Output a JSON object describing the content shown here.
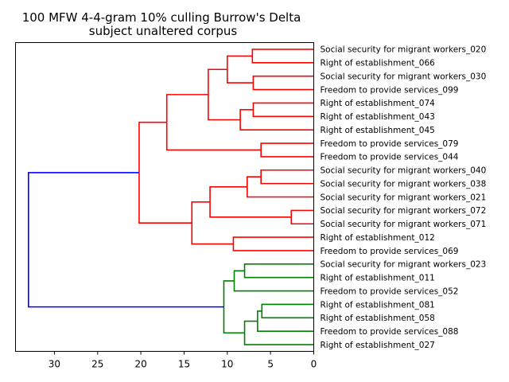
{
  "chart_data": {
    "type": "dendrogram",
    "title_lines": [
      "100 MFW 4-4-gram 10% culling Burrow's Delta",
      "subject unaltered corpus"
    ],
    "orientation": "left",
    "xlim": [
      34.5,
      0
    ],
    "x_ticks": [
      30,
      25,
      20,
      15,
      10,
      5,
      0
    ],
    "x_tick_labels": [
      "30",
      "25",
      "20",
      "15",
      "10",
      "5",
      "0"
    ],
    "leaves": [
      "Social security for migrant workers_020",
      "Right of establishment_066",
      "Social security for migrant workers_030",
      "Freedom to provide services_099",
      "Right of establishment_074",
      "Right of establishment_043",
      "Right of establishment_045",
      "Freedom to provide services_079",
      "Freedom to provide services_044",
      "Social security for migrant workers_040",
      "Social security for migrant workers_038",
      "Social security for migrant workers_021",
      "Social security for migrant workers_072",
      "Social security for migrant workers_071",
      "Right of establishment_012",
      "Freedom to provide services_069",
      "Social security for migrant workers_023",
      "Right of establishment_011",
      "Freedom to provide services_052",
      "Right of establishment_081",
      "Right of establishment_058",
      "Freedom to provide services_088",
      "Right of establishment_027"
    ],
    "colors": {
      "cluster_red": "#ff0000",
      "cluster_green": "#008000",
      "root_blue": "#0000ff"
    },
    "merges": [
      {
        "id": "m1",
        "left": "L0",
        "right": "L1",
        "height": 7.1,
        "color": "cluster_red"
      },
      {
        "id": "m2",
        "left": "L2",
        "right": "L3",
        "height": 7.0,
        "color": "cluster_red"
      },
      {
        "id": "m3",
        "left": "m1",
        "right": "m2",
        "height": 10.0,
        "color": "cluster_red"
      },
      {
        "id": "m4",
        "left": "L4",
        "right": "L5",
        "height": 7.0,
        "color": "cluster_red"
      },
      {
        "id": "m5",
        "left": "m4",
        "right": "L6",
        "height": 8.5,
        "color": "cluster_red"
      },
      {
        "id": "m6",
        "left": "m3",
        "right": "m5",
        "height": 12.2,
        "color": "cluster_red"
      },
      {
        "id": "m7",
        "left": "L7",
        "right": "L8",
        "height": 6.1,
        "color": "cluster_red"
      },
      {
        "id": "m8",
        "left": "m6",
        "right": "m7",
        "height": 17.0,
        "color": "cluster_red"
      },
      {
        "id": "m9",
        "left": "L9",
        "right": "L10",
        "height": 6.1,
        "color": "cluster_red"
      },
      {
        "id": "m10",
        "left": "m9",
        "right": "L11",
        "height": 7.7,
        "color": "cluster_red"
      },
      {
        "id": "m11",
        "left": "L12",
        "right": "L13",
        "height": 2.6,
        "color": "cluster_red"
      },
      {
        "id": "m12",
        "left": "m10",
        "right": "m11",
        "height": 12.0,
        "color": "cluster_red"
      },
      {
        "id": "m13",
        "left": "L14",
        "right": "L15",
        "height": 9.3,
        "color": "cluster_red"
      },
      {
        "id": "m14",
        "left": "m12",
        "right": "m13",
        "height": 14.1,
        "color": "cluster_red"
      },
      {
        "id": "m15",
        "left": "m8",
        "right": "m14",
        "height": 20.2,
        "color": "cluster_red"
      },
      {
        "id": "m16",
        "left": "L16",
        "right": "L17",
        "height": 8.0,
        "color": "cluster_green"
      },
      {
        "id": "m17",
        "left": "m16",
        "right": "L18",
        "height": 9.2,
        "color": "cluster_green"
      },
      {
        "id": "m18",
        "left": "L19",
        "right": "L20",
        "height": 6.0,
        "color": "cluster_green"
      },
      {
        "id": "m19",
        "left": "m18",
        "right": "L21",
        "height": 6.5,
        "color": "cluster_green"
      },
      {
        "id": "m20",
        "left": "m19",
        "right": "L22",
        "height": 8.0,
        "color": "cluster_green"
      },
      {
        "id": "m21",
        "left": "m17",
        "right": "m20",
        "height": 10.4,
        "color": "cluster_green"
      },
      {
        "id": "m22",
        "left": "m15",
        "right": "m21",
        "height": 33.0,
        "color": "root_blue"
      }
    ]
  }
}
